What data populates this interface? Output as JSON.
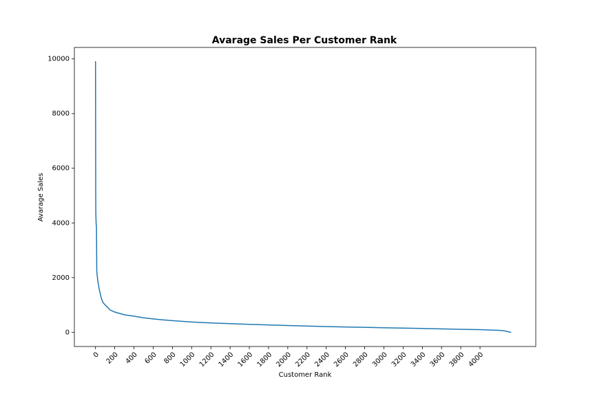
{
  "chart_data": {
    "type": "line",
    "title": "Avarage Sales Per Customer Rank",
    "xlabel": "Customer Rank",
    "ylabel": "Avarage Sales",
    "xlim": [
      -220,
      4580
    ],
    "ylim": [
      -520,
      10420
    ],
    "x_ticks": [
      0,
      200,
      400,
      600,
      800,
      1000,
      1200,
      1400,
      1600,
      1800,
      2000,
      2200,
      2400,
      2600,
      2800,
      3000,
      3200,
      3400,
      3600,
      3800,
      4000
    ],
    "y_ticks": [
      0,
      2000,
      4000,
      6000,
      8000,
      10000
    ],
    "x_tick_rotation": 45,
    "grid": false,
    "legend": false,
    "series_color": "#1f77b4",
    "series": [
      {
        "x": [
          0,
          1,
          2,
          3,
          5,
          7,
          10,
          12,
          13,
          15,
          20,
          25,
          30,
          40,
          50,
          60,
          70,
          80,
          100,
          130,
          150,
          200,
          250,
          300,
          400,
          500,
          600,
          700,
          800,
          1000,
          1200,
          1400,
          1600,
          1800,
          2000,
          2200,
          2400,
          2600,
          2800,
          3000,
          3200,
          3400,
          3600,
          3800,
          4000,
          4100,
          4200,
          4250,
          4280,
          4300,
          4320
        ],
        "y": [
          9900,
          7500,
          5200,
          4400,
          4100,
          3950,
          3850,
          2800,
          2300,
          2150,
          2000,
          1850,
          1750,
          1550,
          1400,
          1250,
          1150,
          1080,
          1000,
          900,
          820,
          740,
          690,
          640,
          590,
          530,
          490,
          455,
          425,
          375,
          340,
          315,
          290,
          268,
          248,
          228,
          210,
          195,
          180,
          165,
          152,
          140,
          125,
          110,
          95,
          85,
          70,
          55,
          35,
          15,
          0
        ]
      }
    ]
  }
}
